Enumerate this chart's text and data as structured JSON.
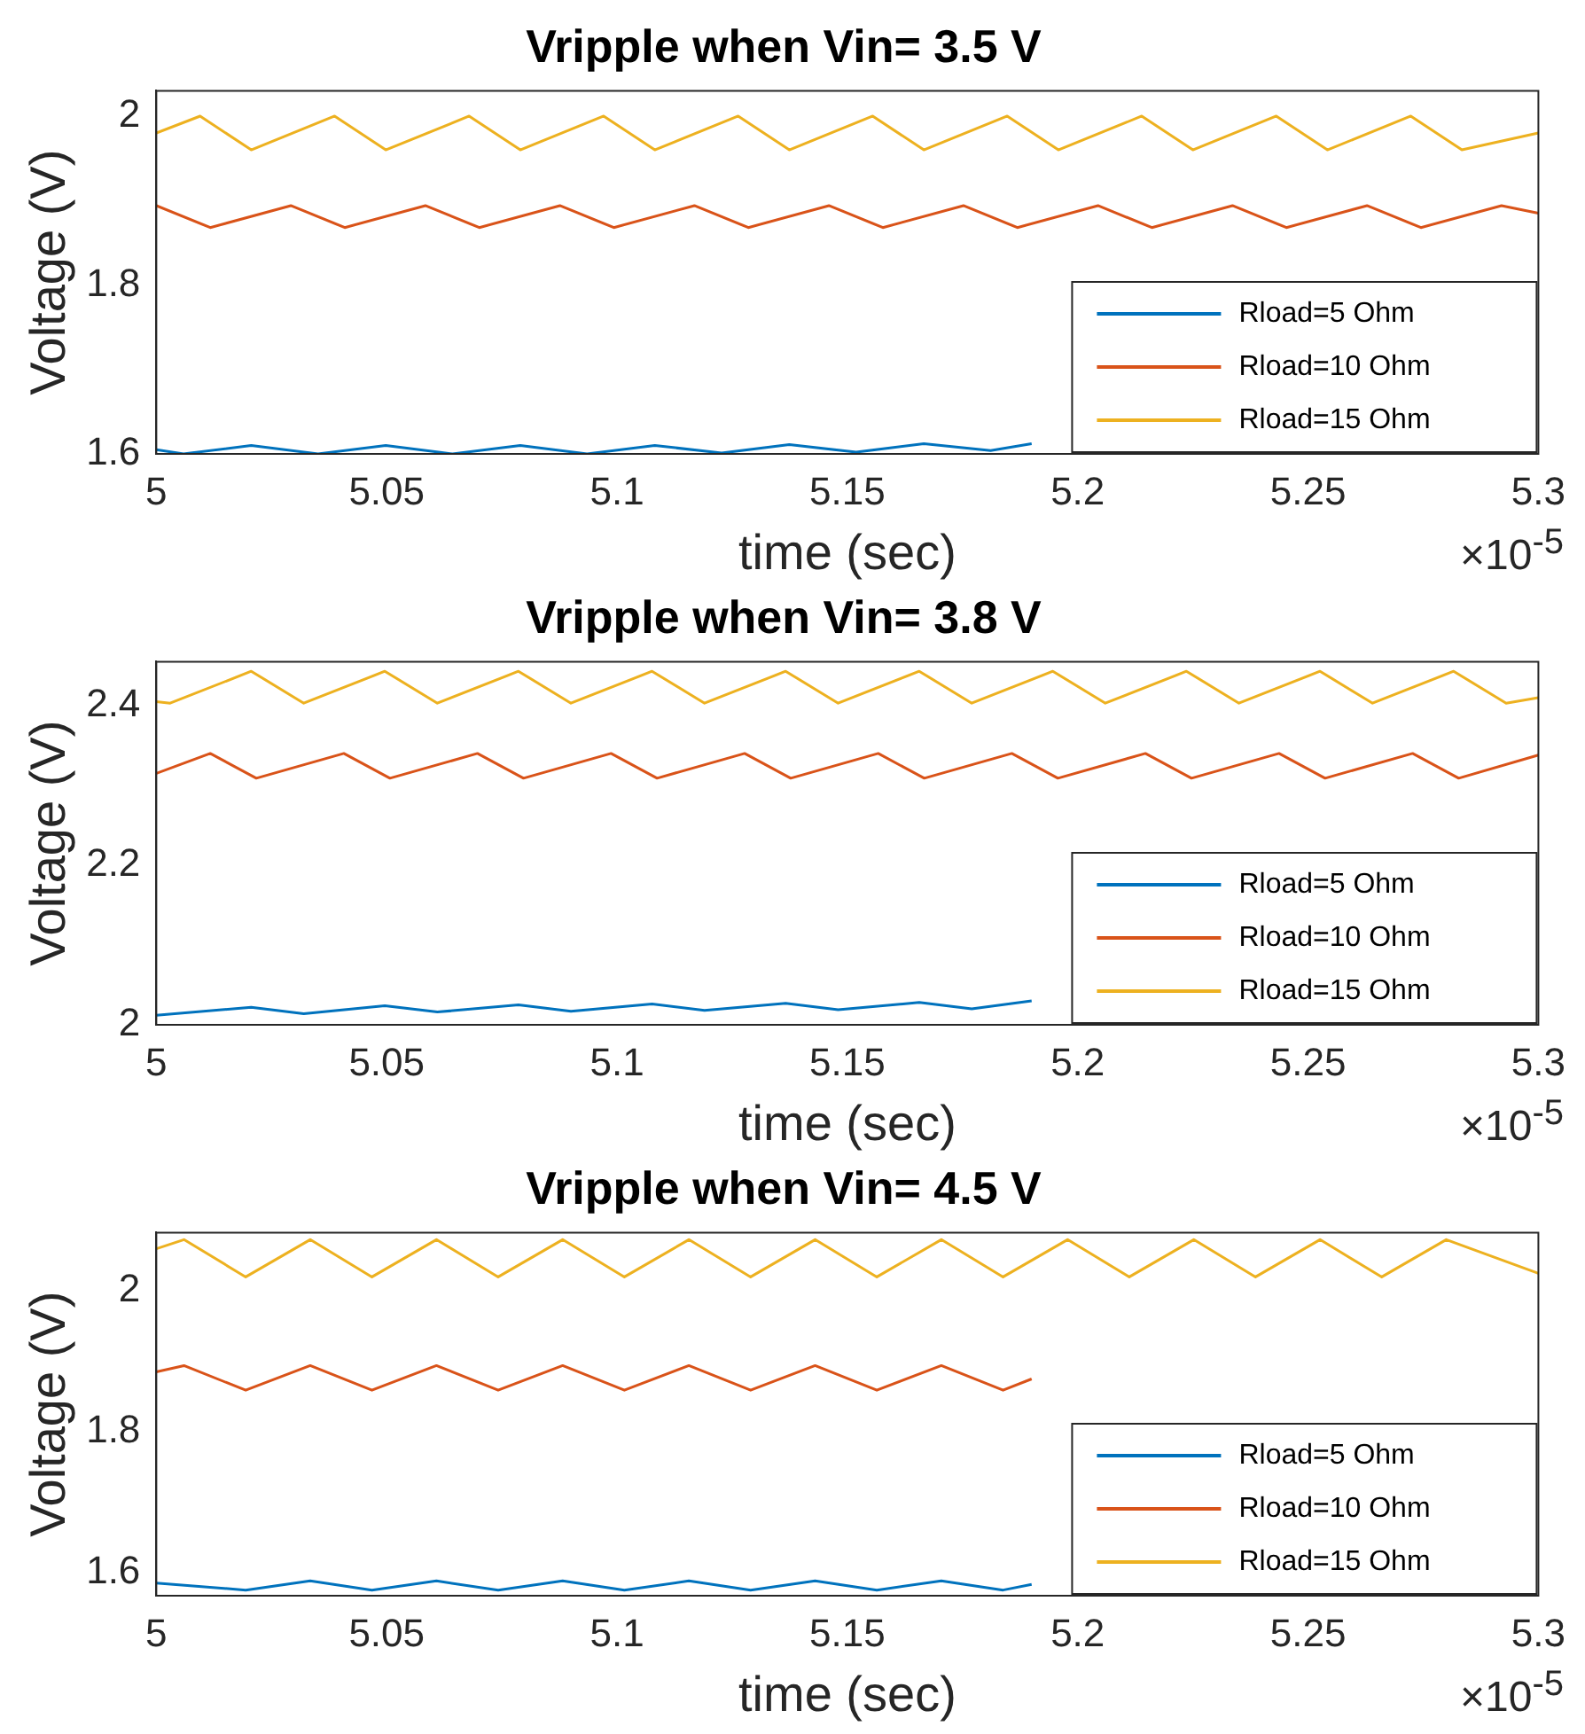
{
  "chart_data": [
    {
      "type": "line",
      "title": "Vripple when Vin= 3.5 V",
      "xlabel": "time (sec)",
      "ylabel": "Voltage (V)",
      "annotations": [
        "×10$^{-5}$"
      ],
      "xlim": [
        5,
        5.3
      ],
      "xticks": [
        5,
        5.05,
        5.1,
        5.15,
        5.2,
        5.25,
        5.3
      ],
      "ylim": [
        1.6,
        2.03
      ],
      "yticks": [
        1.6,
        1.8,
        2
      ],
      "grid": false,
      "legend": "bottom right",
      "marker": "none",
      "line_style": "solid",
      "series": [
        {
          "name": "Rload=5 Ohm",
          "color": "#0072bd",
          "x": [
            5,
            5.0059,
            5.0206,
            5.0351,
            5.0498,
            5.0643,
            5.079,
            5.0935,
            5.1082,
            5.1227,
            5.1374,
            5.1519,
            5.1666,
            5.1811,
            5.19
          ],
          "values": [
            1.605,
            1.6,
            1.61,
            1.6,
            1.61,
            1.6,
            1.61,
            1.6,
            1.61,
            1.601,
            1.611,
            1.602,
            1.612,
            1.604,
            1.612
          ]
        },
        {
          "name": "Rload=10 Ohm",
          "color": "#d95319",
          "x": [
            5,
            5.0117,
            5.0292,
            5.0409,
            5.0584,
            5.0701,
            5.0876,
            5.0993,
            5.1168,
            5.1285,
            5.146,
            5.1577,
            5.1752,
            5.1869,
            5.2044,
            5.2161,
            5.2336,
            5.2453,
            5.2628,
            5.2745,
            5.292,
            5.3
          ],
          "values": [
            1.894,
            1.868,
            1.894,
            1.868,
            1.894,
            1.868,
            1.894,
            1.868,
            1.894,
            1.868,
            1.894,
            1.868,
            1.894,
            1.868,
            1.894,
            1.868,
            1.894,
            1.868,
            1.894,
            1.868,
            1.894,
            1.885
          ]
        },
        {
          "name": "Rload=15 Ohm",
          "color": "#edb120",
          "x": [
            5,
            5.0095,
            5.0206,
            5.0387,
            5.0498,
            5.0679,
            5.079,
            5.0971,
            5.1082,
            5.1263,
            5.1374,
            5.1555,
            5.1666,
            5.1847,
            5.1958,
            5.2139,
            5.225,
            5.2431,
            5.2542,
            5.2723,
            5.2834,
            5.3
          ],
          "values": [
            1.98,
            2,
            1.96,
            2,
            1.96,
            2,
            1.96,
            2,
            1.96,
            2,
            1.96,
            2,
            1.96,
            2,
            1.96,
            2,
            1.96,
            2,
            1.96,
            2,
            1.96,
            1.98
          ]
        }
      ]
    },
    {
      "type": "line",
      "title": "Vripple when Vin= 3.8 V",
      "xlabel": "time (sec)",
      "ylabel": "Voltage (V)",
      "annotations": [
        "×10$^{-5}$"
      ],
      "xlim": [
        5,
        5.3
      ],
      "xticks": [
        5,
        5.05,
        5.1,
        5.15,
        5.2,
        5.25,
        5.3
      ],
      "ylim": [
        2,
        2.455
      ],
      "yticks": [
        2,
        2.2,
        2.4
      ],
      "grid": false,
      "legend": "bottom right",
      "marker": "none",
      "line_style": "solid",
      "series": [
        {
          "name": "Rload=5 Ohm",
          "color": "#0072bd",
          "x": [
            5,
            5.0206,
            5.032,
            5.0496,
            5.061,
            5.0786,
            5.09,
            5.1076,
            5.119,
            5.1366,
            5.148,
            5.1656,
            5.177,
            5.19
          ],
          "values": [
            2.012,
            2.022,
            2.014,
            2.024,
            2.016,
            2.025,
            2.017,
            2.026,
            2.018,
            2.027,
            2.019,
            2.028,
            2.02,
            2.03
          ]
        },
        {
          "name": "Rload=10 Ohm",
          "color": "#d95319",
          "x": [
            5,
            5.0117,
            5.0217,
            5.0407,
            5.0507,
            5.0697,
            5.0797,
            5.0987,
            5.1087,
            5.1277,
            5.1377,
            5.1567,
            5.1667,
            5.1857,
            5.1957,
            5.2147,
            5.2247,
            5.2437,
            5.2537,
            5.2727,
            5.2827,
            5.3
          ],
          "values": [
            2.315,
            2.34,
            2.309,
            2.34,
            2.309,
            2.34,
            2.309,
            2.34,
            2.309,
            2.34,
            2.309,
            2.34,
            2.309,
            2.34,
            2.309,
            2.34,
            2.309,
            2.34,
            2.309,
            2.34,
            2.309,
            2.338
          ]
        },
        {
          "name": "Rload=15 Ohm",
          "color": "#edb120",
          "x": [
            5,
            5.003,
            5.0206,
            5.032,
            5.0496,
            5.061,
            5.0786,
            5.09,
            5.1076,
            5.119,
            5.1366,
            5.148,
            5.1656,
            5.177,
            5.1946,
            5.206,
            5.2236,
            5.235,
            5.2526,
            5.264,
            5.2816,
            5.293,
            5.3
          ],
          "values": [
            2.405,
            2.403,
            2.443,
            2.403,
            2.443,
            2.403,
            2.443,
            2.403,
            2.443,
            2.403,
            2.443,
            2.403,
            2.443,
            2.403,
            2.443,
            2.403,
            2.443,
            2.403,
            2.443,
            2.403,
            2.443,
            2.403,
            2.41
          ]
        }
      ]
    },
    {
      "type": "line",
      "title": "Vripple when Vin= 4.5 V",
      "xlabel": "time (sec)",
      "ylabel": "Voltage (V)",
      "annotations": [
        "×10$^{-5}$"
      ],
      "xlim": [
        5,
        5.3
      ],
      "xticks": [
        5,
        5.05,
        5.1,
        5.15,
        5.2,
        5.25,
        5.3
      ],
      "ylim": [
        1.567,
        2.083
      ],
      "yticks": [
        1.6,
        1.8,
        2
      ],
      "grid": false,
      "legend": "bottom right",
      "marker": "none",
      "line_style": "solid",
      "series": [
        {
          "name": "Rload=5 Ohm",
          "color": "#0072bd",
          "x": [
            5,
            5.0194,
            5.0334,
            5.0468,
            5.0608,
            5.0742,
            5.0882,
            5.1016,
            5.1156,
            5.129,
            5.143,
            5.1564,
            5.1704,
            5.1838,
            5.19
          ],
          "values": [
            1.585,
            1.575,
            1.588,
            1.575,
            1.588,
            1.575,
            1.588,
            1.575,
            1.588,
            1.575,
            1.588,
            1.575,
            1.588,
            1.575,
            1.583
          ]
        },
        {
          "name": "Rload=10 Ohm",
          "color": "#d95319",
          "x": [
            5,
            5.006,
            5.0194,
            5.0334,
            5.0468,
            5.0608,
            5.0742,
            5.0882,
            5.1016,
            5.1156,
            5.129,
            5.143,
            5.1564,
            5.1704,
            5.1838,
            5.19
          ],
          "values": [
            1.885,
            1.894,
            1.859,
            1.894,
            1.859,
            1.894,
            1.859,
            1.894,
            1.859,
            1.894,
            1.859,
            1.894,
            1.859,
            1.894,
            1.859,
            1.875
          ]
        },
        {
          "name": "Rload=15 Ohm",
          "color": "#edb120",
          "x": [
            5,
            5.006,
            5.0194,
            5.0334,
            5.0468,
            5.0608,
            5.0742,
            5.0882,
            5.1016,
            5.1156,
            5.129,
            5.143,
            5.1564,
            5.1704,
            5.1838,
            5.1978,
            5.2112,
            5.2252,
            5.2386,
            5.2526,
            5.266,
            5.28,
            5.3
          ],
          "values": [
            2.06,
            2.073,
            2.02,
            2.073,
            2.02,
            2.073,
            2.02,
            2.073,
            2.02,
            2.073,
            2.02,
            2.073,
            2.02,
            2.073,
            2.02,
            2.073,
            2.02,
            2.073,
            2.02,
            2.073,
            2.02,
            2.073,
            2.025
          ]
        }
      ]
    }
  ]
}
